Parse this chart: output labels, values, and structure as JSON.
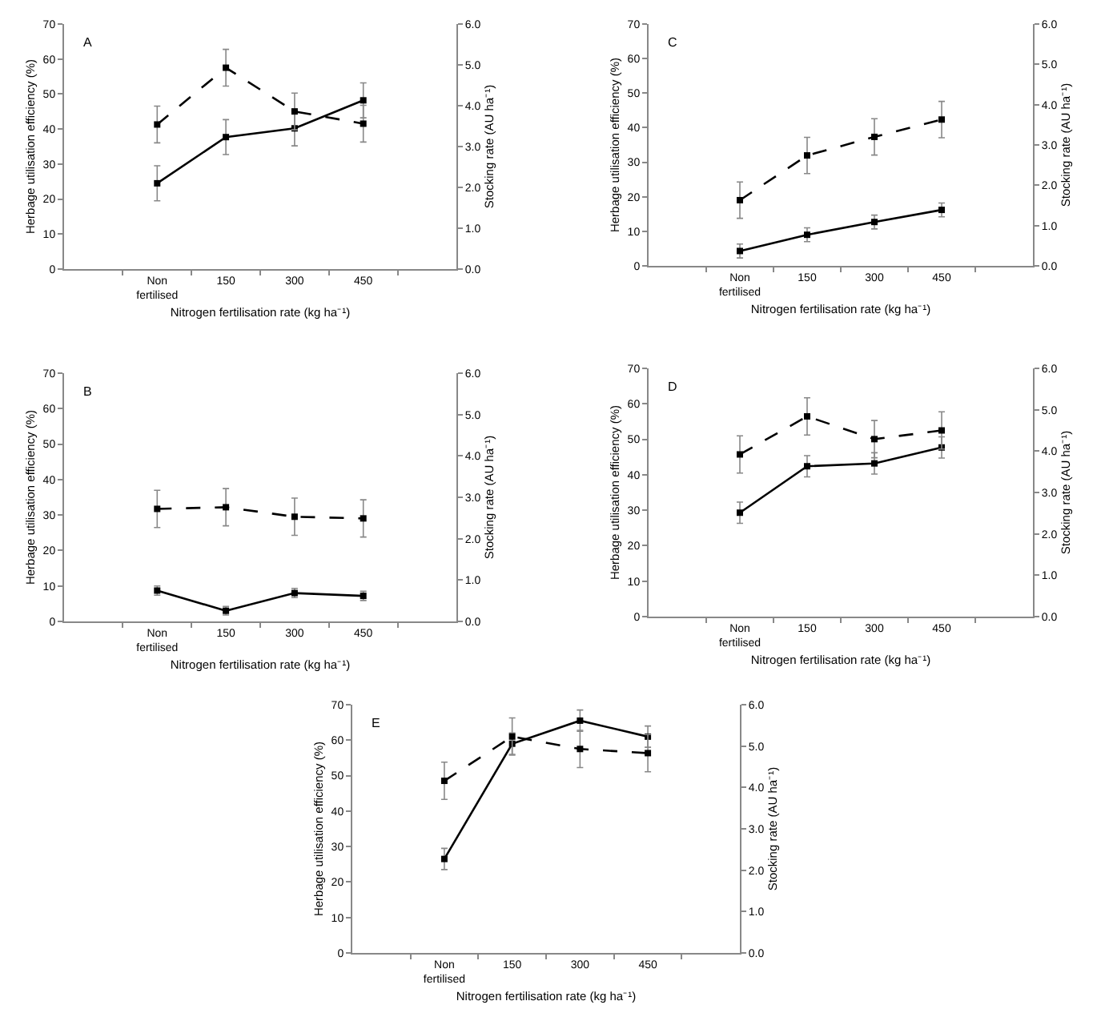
{
  "chart_data": [
    {
      "type": "line",
      "title": "A",
      "xlabel": "Nitrogen fertilisation rate (kg ha⁻¹)",
      "ylabel": "Herbage utilisation efficiency (%)",
      "y2label": "Stocking rate (AU ha⁻¹)",
      "categories": [
        null,
        "Non\nfertilised",
        "150",
        "300",
        "450",
        null
      ],
      "ylim": [
        0,
        70
      ],
      "yticks": [
        0,
        10,
        20,
        30,
        40,
        50,
        60,
        70
      ],
      "y2lim": [
        0,
        6
      ],
      "y2ticks": [
        {
          "value": 0,
          "label": "0.0"
        },
        {
          "value": 1,
          "label": "1.0"
        },
        {
          "value": 2,
          "label": "2.0"
        },
        {
          "value": 3,
          "label": "3.0"
        },
        {
          "value": 4,
          "label": "4.0"
        },
        {
          "value": 5,
          "label": "5.0"
        },
        {
          "value": 6,
          "label": "6.0"
        }
      ],
      "marker": "square",
      "series": [
        {
          "color": "#000000",
          "line_style": "solid",
          "values": [
            null,
            24.5,
            37.7,
            40.2,
            48.2,
            null
          ],
          "errors": [
            null,
            5,
            5,
            5,
            5,
            null
          ]
        },
        {
          "color": "#000000",
          "line_style": "dashed",
          "axis": "y2",
          "values": [
            null,
            3.54,
            4.93,
            3.86,
            3.56,
            null
          ],
          "errors": [
            null,
            0.45,
            0.45,
            0.45,
            0.45,
            null
          ]
        }
      ]
    },
    {
      "type": "line",
      "title": "C",
      "xlabel": "Nitrogen fertilisation rate (kg ha⁻¹)",
      "ylabel": "Herbage utilisation efficiency (%)",
      "y2label": "Stocking rate (AU ha⁻¹)",
      "categories": [
        null,
        "Non\nfertilised",
        "150",
        "300",
        "450",
        null
      ],
      "ylim": [
        0,
        70
      ],
      "yticks": [
        0,
        10,
        20,
        30,
        40,
        50,
        60,
        70
      ],
      "y2lim": [
        0,
        6
      ],
      "y2ticks": [
        {
          "value": 0,
          "label": "0.0"
        },
        {
          "value": 1,
          "label": "1.0"
        },
        {
          "value": 2,
          "label": "2.0"
        },
        {
          "value": 3,
          "label": "3.0"
        },
        {
          "value": 4,
          "label": "4.0"
        },
        {
          "value": 5,
          "label": "5.0"
        },
        {
          "value": 6,
          "label": "6.0"
        }
      ],
      "marker": "square",
      "series": [
        {
          "color": "#000000",
          "line_style": "solid",
          "values": [
            null,
            4.3,
            9,
            12.7,
            16.2,
            null
          ],
          "errors": [
            null,
            2,
            2,
            2,
            2,
            null
          ]
        },
        {
          "color": "#000000",
          "line_style": "dashed",
          "axis": "y2",
          "values": [
            null,
            1.63,
            2.74,
            3.2,
            3.63,
            null
          ],
          "errors": [
            null,
            0.45,
            0.45,
            0.45,
            0.45,
            null
          ]
        }
      ]
    },
    {
      "type": "line",
      "title": "B",
      "xlabel": "Nitrogen fertilisation rate (kg ha⁻¹)",
      "ylabel": "Herbage utilisation efficiency (%)",
      "y2label": "Stocking rate (AU ha⁻¹)",
      "categories": [
        null,
        "Non\nfertilised",
        "150",
        "300",
        "450",
        null
      ],
      "ylim": [
        0,
        70
      ],
      "yticks": [
        0,
        10,
        20,
        30,
        40,
        50,
        60,
        70
      ],
      "y2lim": [
        0,
        6
      ],
      "y2ticks": [
        {
          "value": 0,
          "label": "0.0"
        },
        {
          "value": 1,
          "label": "1.0"
        },
        {
          "value": 2,
          "label": "2.0"
        },
        {
          "value": 3,
          "label": "3.0"
        },
        {
          "value": 4,
          "label": "4.0"
        },
        {
          "value": 5,
          "label": "5.0"
        },
        {
          "value": 6,
          "label": "6.0"
        }
      ],
      "marker": "square",
      "series": [
        {
          "color": "#000000",
          "line_style": "solid",
          "values": [
            null,
            8.7,
            3,
            8,
            7.2,
            null
          ],
          "errors": [
            null,
            1.3,
            1.2,
            1.3,
            1.3,
            null
          ]
        },
        {
          "color": "#000000",
          "line_style": "dashed",
          "axis": "y2",
          "values": [
            null,
            2.72,
            2.76,
            2.53,
            2.49,
            null
          ],
          "errors": [
            null,
            0.45,
            0.45,
            0.45,
            0.45,
            null
          ]
        }
      ]
    },
    {
      "type": "line",
      "title": "D",
      "xlabel": "Nitrogen fertilisation rate (kg ha⁻¹)",
      "ylabel": "Herbage utilisation efficiency (%)",
      "y2label": "Stocking rate (AU ha⁻¹)",
      "categories": [
        null,
        "Non\nfertilised",
        "150",
        "300",
        "450",
        null
      ],
      "ylim": [
        0,
        70
      ],
      "yticks": [
        0,
        10,
        20,
        30,
        40,
        50,
        60,
        70
      ],
      "y2lim": [
        0,
        6
      ],
      "y2ticks": [
        {
          "value": 0,
          "label": "0.0"
        },
        {
          "value": 1,
          "label": "1.0"
        },
        {
          "value": 2,
          "label": "2.0"
        },
        {
          "value": 3,
          "label": "3.0"
        },
        {
          "value": 4,
          "label": "4.0"
        },
        {
          "value": 5,
          "label": "5.0"
        },
        {
          "value": 6,
          "label": "6.0"
        }
      ],
      "marker": "square",
      "series": [
        {
          "color": "#000000",
          "line_style": "solid",
          "values": [
            null,
            29.3,
            42.4,
            43.2,
            47.7,
            null
          ],
          "errors": [
            null,
            3,
            3,
            3,
            3,
            null
          ]
        },
        {
          "color": "#000000",
          "line_style": "dashed",
          "axis": "y2",
          "values": [
            null,
            3.92,
            4.84,
            4.29,
            4.5,
            null
          ],
          "errors": [
            null,
            0.45,
            0.45,
            0.45,
            0.45,
            null
          ]
        }
      ]
    },
    {
      "type": "line",
      "title": "E",
      "xlabel": "Nitrogen fertilisation rate (kg ha⁻¹)",
      "ylabel": "Herbage utilisation efficiency (%)",
      "y2label": "Stocking rate (AU ha⁻¹)",
      "categories": [
        null,
        "Non\nfertilised",
        "150",
        "300",
        "450",
        null
      ],
      "ylim": [
        0,
        70
      ],
      "yticks": [
        0,
        10,
        20,
        30,
        40,
        50,
        60,
        70
      ],
      "y2lim": [
        0,
        6
      ],
      "y2ticks": [
        {
          "value": 0,
          "label": "0.0"
        },
        {
          "value": 1,
          "label": "1.0"
        },
        {
          "value": 2,
          "label": "2.0"
        },
        {
          "value": 3,
          "label": "3.0"
        },
        {
          "value": 4,
          "label": "4.0"
        },
        {
          "value": 5,
          "label": "5.0"
        },
        {
          "value": 6,
          "label": "6.0"
        }
      ],
      "marker": "square",
      "series": [
        {
          "color": "#000000",
          "line_style": "solid",
          "values": [
            null,
            26.5,
            59,
            65.5,
            61,
            null
          ],
          "errors": [
            null,
            3,
            3,
            3,
            3,
            null
          ]
        },
        {
          "color": "#000000",
          "line_style": "dashed",
          "axis": "y2",
          "values": [
            null,
            4.16,
            5.23,
            4.93,
            4.83,
            null
          ],
          "errors": [
            null,
            0.45,
            0.45,
            0.45,
            0.45,
            null
          ]
        }
      ]
    }
  ]
}
